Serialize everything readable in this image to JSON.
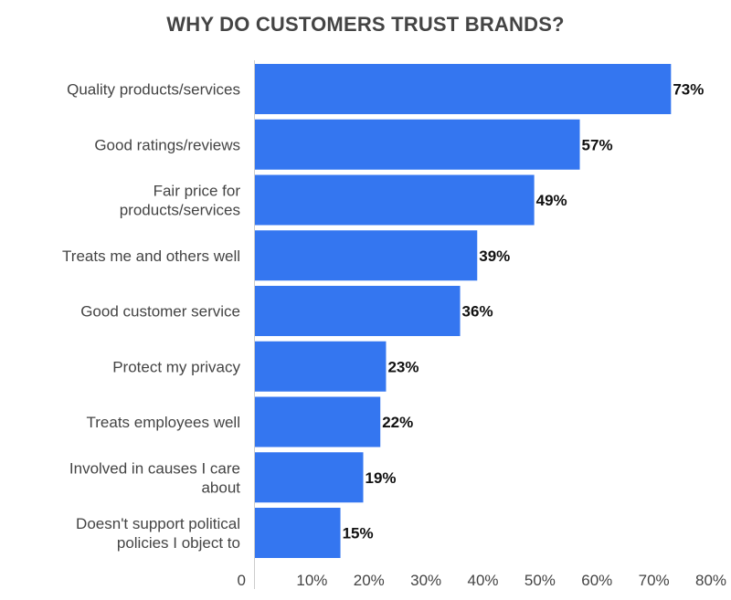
{
  "chart_data": {
    "type": "bar",
    "orientation": "horizontal",
    "title": "WHY DO CUSTOMERS TRUST BRANDS?",
    "categories": [
      [
        "Quality products/services"
      ],
      [
        "Good ratings/reviews"
      ],
      [
        "Fair price for",
        "products/services"
      ],
      [
        "Treats me and others well"
      ],
      [
        "Good customer service"
      ],
      [
        "Protect my privacy"
      ],
      [
        "Treats employees well"
      ],
      [
        "Involved in causes I care",
        "about"
      ],
      [
        "Doesn't support political",
        "policies I object to"
      ]
    ],
    "values": [
      73,
      57,
      49,
      39,
      36,
      23,
      22,
      19,
      15
    ],
    "data_labels": [
      "73%",
      "57%",
      "49%",
      "39%",
      "36%",
      "23%",
      "22%",
      "19%",
      "15%"
    ],
    "xlim": [
      0,
      80
    ],
    "x_ticks": [
      {
        "value": 0,
        "label": "0"
      },
      {
        "value": 10,
        "label": "10%"
      },
      {
        "value": 20,
        "label": "20%"
      },
      {
        "value": 30,
        "label": "30%"
      },
      {
        "value": 40,
        "label": "40%"
      },
      {
        "value": 50,
        "label": "50%"
      },
      {
        "value": 60,
        "label": "60%"
      },
      {
        "value": 70,
        "label": "70%"
      },
      {
        "value": 80,
        "label": "80%"
      }
    ],
    "xlabel": "",
    "ylabel": "",
    "grid": false,
    "legend": "none",
    "colors": {
      "bar": "#3476F0",
      "axis": "#cccccc",
      "text": "#444444"
    }
  }
}
